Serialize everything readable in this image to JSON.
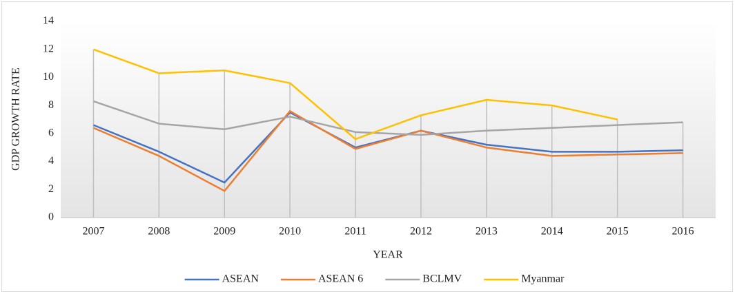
{
  "chart_data": {
    "type": "line",
    "x_label": "YEAR",
    "y_label": "GDP GROWTH  RATE",
    "categories": [
      "2007",
      "2008",
      "2009",
      "2010",
      "2011",
      "2012",
      "2013",
      "2014",
      "2015",
      "2016"
    ],
    "series": [
      {
        "name": "ASEAN",
        "color": "#4472c4",
        "values": [
          6.6,
          4.7,
          2.5,
          7.5,
          5.0,
          6.2,
          5.2,
          4.7,
          4.7,
          4.8
        ]
      },
      {
        "name": "ASEAN 6",
        "color": "#ed7d31",
        "values": [
          6.4,
          4.4,
          1.9,
          7.6,
          4.9,
          6.2,
          5.0,
          4.4,
          4.5,
          4.6
        ]
      },
      {
        "name": "BCLMV",
        "color": "#a5a5a5",
        "values": [
          8.3,
          6.7,
          6.3,
          7.2,
          6.1,
          5.9,
          6.2,
          6.4,
          6.6,
          6.8
        ]
      },
      {
        "name": "Myanmar",
        "color": "#ffc000",
        "values": [
          12.0,
          10.3,
          10.5,
          9.6,
          5.6,
          7.3,
          8.4,
          8.0,
          7.0,
          null
        ]
      }
    ],
    "ylim": [
      0,
      14
    ],
    "yticks": [
      0,
      2,
      4,
      6,
      8,
      10,
      12,
      14
    ],
    "legend": "bottom"
  }
}
